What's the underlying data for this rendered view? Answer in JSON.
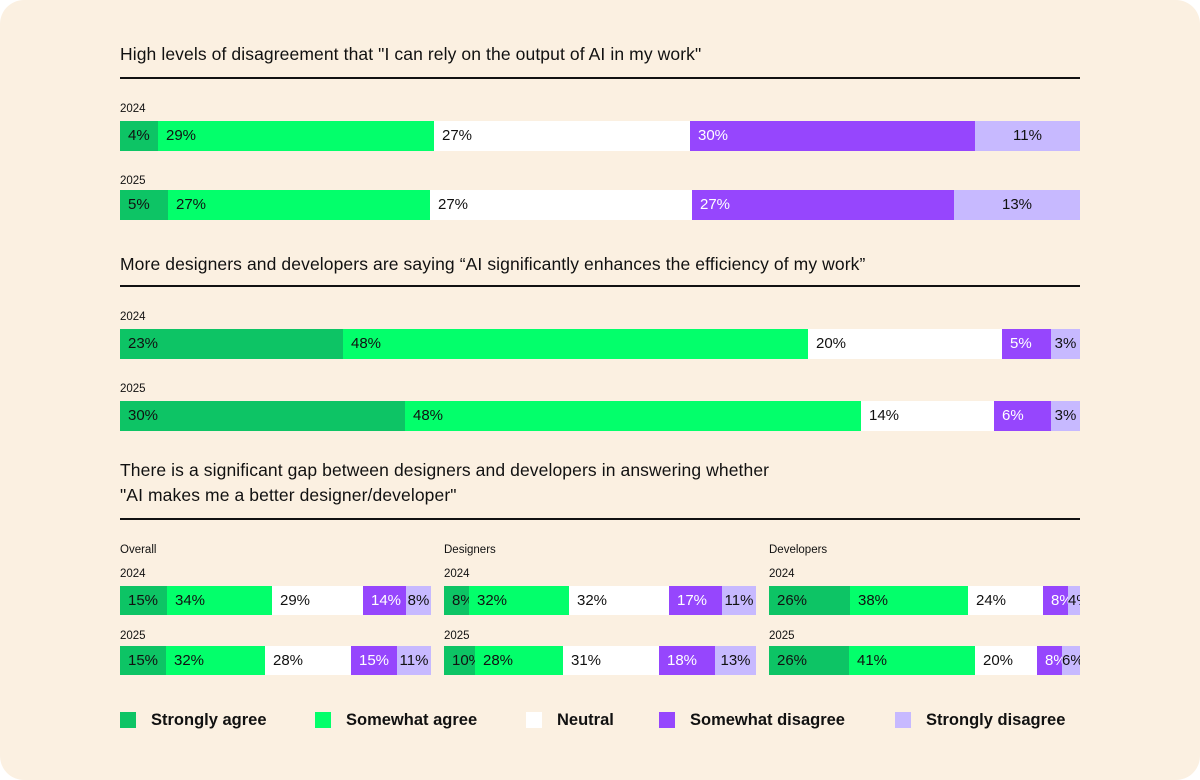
{
  "colors": {
    "background": "#fbf0e1",
    "strongly_agree": "#0dc465",
    "somewhat_agree": "#03ff6b",
    "neutral": "#ffffff",
    "somewhat_disagree": "#9646fd",
    "strongly_disagree": "#c7b9ff"
  },
  "legend": [
    {
      "key": "strongly_agree",
      "label": "Strongly agree"
    },
    {
      "key": "somewhat_agree",
      "label": "Somewhat agree"
    },
    {
      "key": "neutral",
      "label": "Neutral"
    },
    {
      "key": "somewhat_disagree",
      "label": "Somewhat disagree"
    },
    {
      "key": "strongly_disagree",
      "label": "Strongly disagree"
    }
  ],
  "chart_data": [
    {
      "type": "bar",
      "stacked": "100%",
      "orientation": "horizontal",
      "title": "High levels of disagreement that \"I can rely on the output of AI in my work\"",
      "categories": [
        "2024",
        "2025"
      ],
      "series": [
        {
          "name": "Strongly agree",
          "values": [
            4,
            5
          ]
        },
        {
          "name": "Somewhat agree",
          "values": [
            29,
            27
          ]
        },
        {
          "name": "Neutral",
          "values": [
            27,
            27
          ]
        },
        {
          "name": "Somewhat disagree",
          "values": [
            30,
            27
          ]
        },
        {
          "name": "Strongly disagree",
          "values": [
            11,
            13
          ]
        }
      ]
    },
    {
      "type": "bar",
      "stacked": "100%",
      "orientation": "horizontal",
      "title": "More designers and developers are saying “AI significantly enhances the efficiency of my work”",
      "categories": [
        "2024",
        "2025"
      ],
      "series": [
        {
          "name": "Strongly agree",
          "values": [
            23,
            30
          ]
        },
        {
          "name": "Somewhat agree",
          "values": [
            48,
            48
          ]
        },
        {
          "name": "Neutral",
          "values": [
            20,
            14
          ]
        },
        {
          "name": "Somewhat disagree",
          "values": [
            5,
            6
          ]
        },
        {
          "name": "Strongly disagree",
          "values": [
            3,
            3
          ]
        }
      ]
    },
    {
      "type": "bar",
      "stacked": "100%",
      "orientation": "horizontal",
      "title": "There is a significant gap between designers and developers in answering whether",
      "title_line2": "\"AI makes me a better designer/developer\"",
      "groups": [
        {
          "label": "Overall",
          "categories": [
            "2024",
            "2025"
          ],
          "series": [
            {
              "name": "Strongly agree",
              "values": [
                15,
                15
              ]
            },
            {
              "name": "Somewhat agree",
              "values": [
                34,
                32
              ]
            },
            {
              "name": "Neutral",
              "values": [
                29,
                28
              ]
            },
            {
              "name": "Somewhat disagree",
              "values": [
                14,
                15
              ]
            },
            {
              "name": "Strongly disagree",
              "values": [
                8,
                11
              ]
            }
          ]
        },
        {
          "label": "Designers",
          "categories": [
            "2024",
            "2025"
          ],
          "series": [
            {
              "name": "Strongly agree",
              "values": [
                8,
                10
              ]
            },
            {
              "name": "Somewhat agree",
              "values": [
                32,
                28
              ]
            },
            {
              "name": "Neutral",
              "values": [
                32,
                31
              ]
            },
            {
              "name": "Somewhat disagree",
              "values": [
                17,
                18
              ]
            },
            {
              "name": "Strongly disagree",
              "values": [
                11,
                13
              ]
            }
          ]
        },
        {
          "label": "Developers",
          "categories": [
            "2024",
            "2025"
          ],
          "series": [
            {
              "name": "Strongly agree",
              "values": [
                26,
                26
              ]
            },
            {
              "name": "Somewhat agree",
              "values": [
                38,
                41
              ]
            },
            {
              "name": "Neutral",
              "values": [
                24,
                20
              ]
            },
            {
              "name": "Somewhat disagree",
              "values": [
                8,
                8
              ]
            },
            {
              "name": "Strongly disagree",
              "values": [
                4,
                6
              ]
            }
          ]
        }
      ]
    }
  ]
}
